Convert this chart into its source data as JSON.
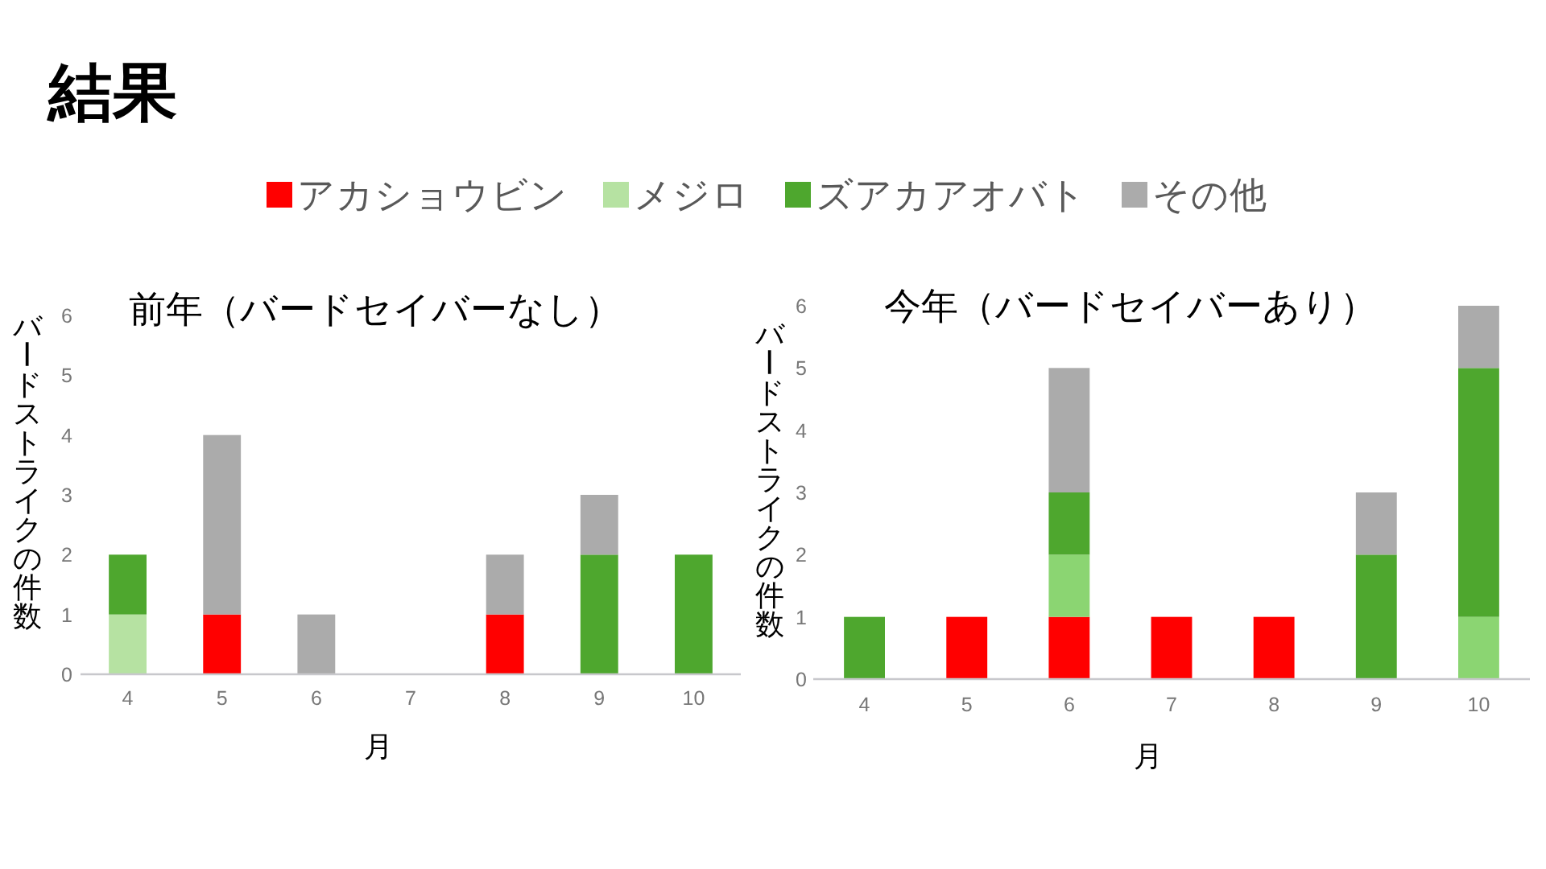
{
  "chart_data": [
    {
      "type": "bar",
      "title": "前年（バードセイバーなし）",
      "xlabel": "月",
      "ylabel": "バードストライクの件数",
      "annotations": [
        "結果"
      ],
      "categories": [
        "4",
        "5",
        "6",
        "7",
        "8",
        "9",
        "10"
      ],
      "stacked": true,
      "legend": "top",
      "ylim": [
        0,
        6
      ],
      "yticks": [
        0,
        1,
        2,
        3,
        4,
        5,
        6
      ],
      "series": [
        {
          "name": "アカショウビン",
          "color": "#ff0000",
          "values": [
            0,
            1,
            0,
            0,
            1,
            0,
            0
          ]
        },
        {
          "name": "メジロ",
          "color": "#b6e2a2",
          "values": [
            1,
            0,
            0,
            0,
            0,
            0,
            0
          ]
        },
        {
          "name": "ズアカアオバト",
          "color": "#4ea72e",
          "values": [
            1,
            0,
            0,
            0,
            0,
            2,
            2
          ]
        },
        {
          "name": "その他",
          "color": "#ababab",
          "values": [
            0,
            3,
            1,
            0,
            1,
            1,
            0
          ]
        }
      ]
    },
    {
      "type": "bar",
      "title": "今年（バードセイバーあり）",
      "xlabel": "月",
      "ylabel": "バードストライクの件数",
      "categories": [
        "4",
        "5",
        "6",
        "7",
        "8",
        "9",
        "10"
      ],
      "stacked": true,
      "ylim": [
        0,
        6
      ],
      "yticks": [
        0,
        1,
        2,
        3,
        4,
        5,
        6
      ],
      "series": [
        {
          "color": "#ff0000",
          "values": [
            0,
            1,
            1,
            1,
            1,
            0,
            0
          ]
        },
        {
          "color": "#8bd572",
          "values": [
            0,
            0,
            1,
            0,
            0,
            0,
            1
          ]
        },
        {
          "color": "#4ea72e",
          "values": [
            1,
            0,
            1,
            0,
            0,
            2,
            4
          ]
        },
        {
          "color": "#ababab",
          "values": [
            0,
            0,
            2,
            0,
            0,
            1,
            1
          ]
        }
      ]
    }
  ]
}
